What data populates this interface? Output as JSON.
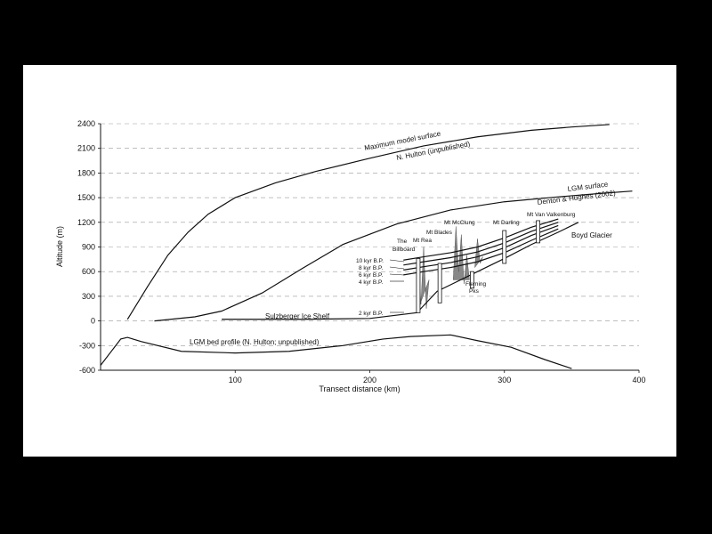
{
  "chart_data": {
    "type": "line",
    "xlabel": "Transect distance (km)",
    "ylabel": "Altitude (m)",
    "xlim": [
      0,
      400
    ],
    "ylim": [
      -600,
      2400
    ],
    "x_ticks": [
      100,
      200,
      300,
      400
    ],
    "y_ticks": [
      -600,
      -300,
      0,
      300,
      600,
      900,
      1200,
      1500,
      1800,
      2100,
      2400
    ],
    "grid": "dashed horizontal",
    "series": [
      {
        "name": "Maximum model surface",
        "x": [
          20,
          35,
          50,
          65,
          80,
          100,
          130,
          160,
          200,
          240,
          280,
          320,
          350,
          378
        ],
        "y": [
          20,
          420,
          800,
          1080,
          1300,
          1500,
          1680,
          1820,
          1980,
          2130,
          2240,
          2320,
          2360,
          2390
        ]
      },
      {
        "name": "N. Hulton (unpublished)",
        "x": [],
        "y": []
      },
      {
        "name": "LGM surface",
        "x": [
          40,
          70,
          90,
          120,
          150,
          180,
          220,
          260,
          300,
          340,
          370,
          395
        ],
        "y": [
          0,
          50,
          120,
          340,
          640,
          930,
          1180,
          1350,
          1450,
          1510,
          1550,
          1580
        ]
      },
      {
        "name": "Denton & Hughes (2002)",
        "x": [],
        "y": []
      },
      {
        "name": "2 kyr B.P.",
        "x": [
          90,
          150,
          200,
          235,
          250,
          270,
          300,
          320,
          340,
          355
        ],
        "y": [
          20,
          20,
          30,
          100,
          360,
          520,
          760,
          930,
          1080,
          1200
        ]
      },
      {
        "name": "4 kyr B.P.",
        "x": [
          225,
          240,
          260,
          280,
          300,
          320,
          340
        ],
        "y": [
          560,
          600,
          650,
          720,
          830,
          980,
          1120
        ]
      },
      {
        "name": "6 kyr B.P.",
        "x": [
          225,
          240,
          260,
          280,
          300,
          320,
          340
        ],
        "y": [
          620,
          660,
          710,
          780,
          890,
          1040,
          1160
        ]
      },
      {
        "name": "8 kyr B.P.",
        "x": [
          225,
          240,
          260,
          280,
          300,
          320,
          340
        ],
        "y": [
          680,
          720,
          770,
          840,
          950,
          1090,
          1200
        ]
      },
      {
        "name": "10 kyr B.P.",
        "x": [
          225,
          240,
          260,
          280,
          300,
          320,
          340
        ],
        "y": [
          740,
          780,
          830,
          900,
          1010,
          1140,
          1240
        ]
      },
      {
        "name": "LGM bed profile (N. Hulton; unpublished)",
        "x": [
          0,
          15,
          20,
          30,
          60,
          100,
          140,
          180,
          210,
          230,
          260,
          280,
          305,
          330,
          350
        ],
        "y": [
          -540,
          -220,
          -200,
          -250,
          -370,
          -390,
          -370,
          -300,
          -220,
          -190,
          -170,
          -240,
          -320,
          -470,
          -580
        ]
      }
    ],
    "peaks": [
      {
        "x": [
          235,
          236,
          238,
          240,
          242,
          244
        ],
        "y": [
          100,
          700,
          200,
          900,
          150,
          500
        ]
      },
      {
        "x": [
          262,
          264,
          266,
          268,
          270,
          272,
          274
        ],
        "y": [
          500,
          1150,
          600,
          1050,
          450,
          800,
          500
        ]
      },
      {
        "x": [
          278,
          280,
          282,
          284
        ],
        "y": [
          650,
          1000,
          700,
          780
        ]
      }
    ],
    "annotations": {
      "max_surface": "Maximum model surface",
      "hulton": "N. Hulton (unpublished)",
      "lgm_surface": "LGM surface",
      "denton": "Denton & Hughes (2002)",
      "boyd": "Boyd Glacier",
      "sulzberger": "Sulzberger Ice Shelf",
      "bed": "LGM bed profile (N. Hulton; unpublished)",
      "billboard_1": "The",
      "billboard_2": "Billboard",
      "rea": "Mt Rea",
      "blades": "Mt Blades",
      "mcclung": "Mt McClung",
      "darling": "Mt Darling",
      "van": "Mt Van Valkenburg",
      "fleming_1": "Fleming",
      "fleming_2": "Pks",
      "kyr10": "10 kyr B.P.",
      "kyr8": "8 kyr B.P.",
      "kyr6": "6 kyr B.P.",
      "kyr4": "4 kyr B.P.",
      "kyr2": "2 kyr B.P."
    }
  }
}
